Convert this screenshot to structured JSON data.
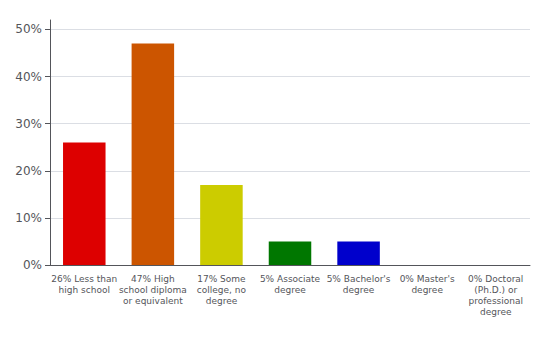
{
  "chart_data": {
    "type": "bar",
    "categories": [
      "26% Less than\nhigh school",
      "47% High\nschool diploma\nor equivalent",
      "17% Some\ncollege, no\ndegree",
      "5% Associate\ndegree",
      "5% Bachelor's\ndegree",
      "0% Master's\ndegree",
      "0% Doctoral\n(Ph.D.) or\nprofessional\ndegree"
    ],
    "values": [
      26,
      47,
      17,
      5,
      5,
      0,
      0
    ],
    "colors": [
      "#dd0000",
      "#cc5500",
      "#cccc00",
      "#007700",
      "#0000cc",
      "#9900bb",
      "#ff44cc"
    ],
    "ylim": [
      0,
      52
    ],
    "yticks": [
      {
        "value": 0,
        "label": "0%"
      },
      {
        "value": 10,
        "label": "10%"
      },
      {
        "value": 20,
        "label": "20%"
      },
      {
        "value": 30,
        "label": "30%"
      },
      {
        "value": 40,
        "label": "40%"
      },
      {
        "value": 50,
        "label": "50%"
      }
    ],
    "grid": true
  }
}
